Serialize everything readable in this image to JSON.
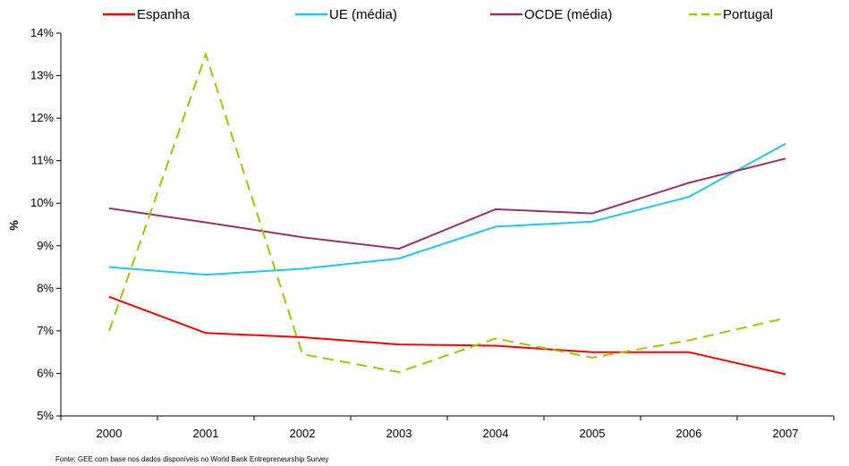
{
  "chart_data": {
    "type": "line",
    "categories": [
      "2000",
      "2001",
      "2002",
      "2003",
      "2004",
      "2005",
      "2006",
      "2007"
    ],
    "ylabel": "%",
    "ylim": [
      5,
      14
    ],
    "yticks": [
      "5%",
      "6%",
      "7%",
      "8%",
      "9%",
      "10%",
      "11%",
      "12%",
      "13%",
      "14%"
    ],
    "grid": false,
    "legend_position": "top",
    "series": [
      {
        "name": "Espanha",
        "color": "#ff0000",
        "dashed": false,
        "values": [
          7.8,
          6.95,
          6.85,
          6.68,
          6.65,
          6.5,
          6.5,
          5.98
        ]
      },
      {
        "name": "UE (média)",
        "color": "#1ec8f0",
        "dashed": false,
        "values": [
          8.5,
          8.32,
          8.46,
          8.7,
          9.45,
          9.57,
          10.15,
          11.4
        ]
      },
      {
        "name": "OCDE (média)",
        "color": "#993366",
        "dashed": false,
        "values": [
          9.88,
          9.55,
          9.2,
          8.93,
          9.86,
          9.76,
          10.48,
          11.05
        ]
      },
      {
        "name": "Portugal",
        "color": "#99cc00",
        "dashed": true,
        "values": [
          7.0,
          13.5,
          6.45,
          6.03,
          6.82,
          6.37,
          6.78,
          7.3
        ]
      }
    ],
    "source": "Fonte: GEE com base nos dados disponíveis no World Bank  Entrepreneurship Survey"
  }
}
